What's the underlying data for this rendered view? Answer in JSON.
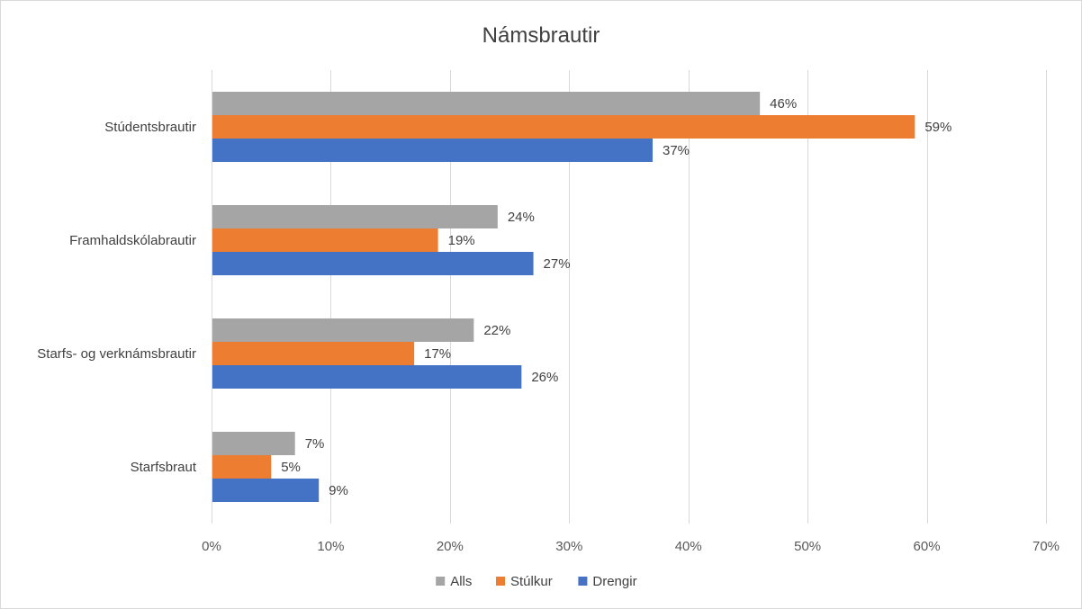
{
  "chart_data": {
    "type": "bar",
    "orientation": "horizontal",
    "title": "Námsbrautir",
    "categories": [
      "Stúdentsbrautir",
      "Framhaldskólabrautir",
      "Starfs- og verknámsbrautir",
      "Starfsbraut"
    ],
    "series": [
      {
        "name": "Alls",
        "color": "#a5a5a5",
        "values": [
          46,
          24,
          22,
          7
        ],
        "labels": [
          "46%",
          "24%",
          "22%",
          "7%"
        ]
      },
      {
        "name": "Stúlkur",
        "color": "#ed7d31",
        "values": [
          59,
          19,
          17,
          5
        ],
        "labels": [
          "59%",
          "19%",
          "17%",
          "5%"
        ]
      },
      {
        "name": "Drengir",
        "color": "#4472c4",
        "values": [
          37,
          27,
          26,
          9
        ],
        "labels": [
          "37%",
          "27%",
          "26%",
          "9%"
        ]
      }
    ],
    "xlim": [
      0,
      70
    ],
    "xticks": [
      0,
      10,
      20,
      30,
      40,
      50,
      60,
      70
    ],
    "xtick_labels": [
      "0%",
      "10%",
      "20%",
      "30%",
      "40%",
      "50%",
      "60%",
      "70%"
    ],
    "grid": true,
    "legend_position": "bottom"
  }
}
